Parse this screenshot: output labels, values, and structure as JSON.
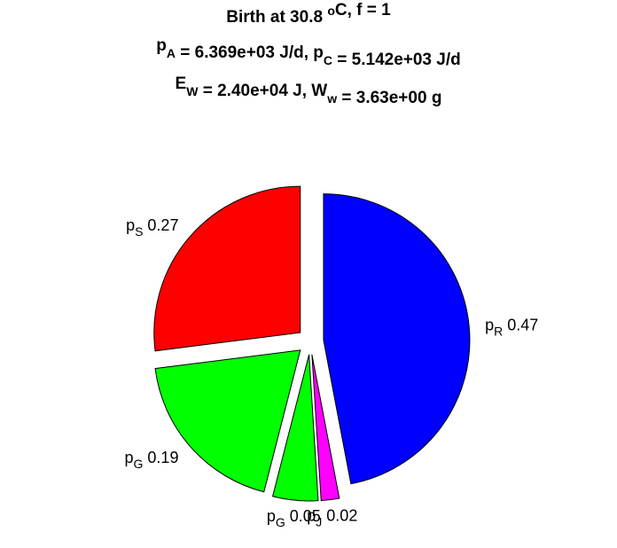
{
  "chart_data": {
    "type": "pie",
    "title": [
      [
        "Birth at 30.8 ",
        {
          "text": "o",
          "shift": "super"
        },
        "C, f = 1"
      ],
      [
        "p",
        {
          "text": "A",
          "shift": "sub"
        },
        " = 6.369e+03 J/d, p",
        {
          "text": "C",
          "shift": "sub"
        },
        " = 5.142e+03 J/d"
      ],
      [
        "E",
        {
          "text": "W",
          "shift": "sub"
        },
        " = 2.40e+04 J, W",
        {
          "text": "w",
          "shift": "sub"
        },
        " = 3.63e+00 g"
      ]
    ],
    "labels": [
      {
        "main": "p",
        "sub": "S"
      },
      {
        "main": "p",
        "sub": "G"
      },
      {
        "main": "p",
        "sub": "G"
      },
      {
        "main": "p",
        "sub": "J"
      },
      {
        "main": "p",
        "sub": "R"
      }
    ],
    "values": [
      0.27,
      0.19,
      0.05,
      0.02,
      0.47
    ],
    "colors": [
      "#ff0000",
      "#00ff00",
      "#00ff00",
      "#ff00ff",
      "#0000ff"
    ],
    "exploded": true
  }
}
